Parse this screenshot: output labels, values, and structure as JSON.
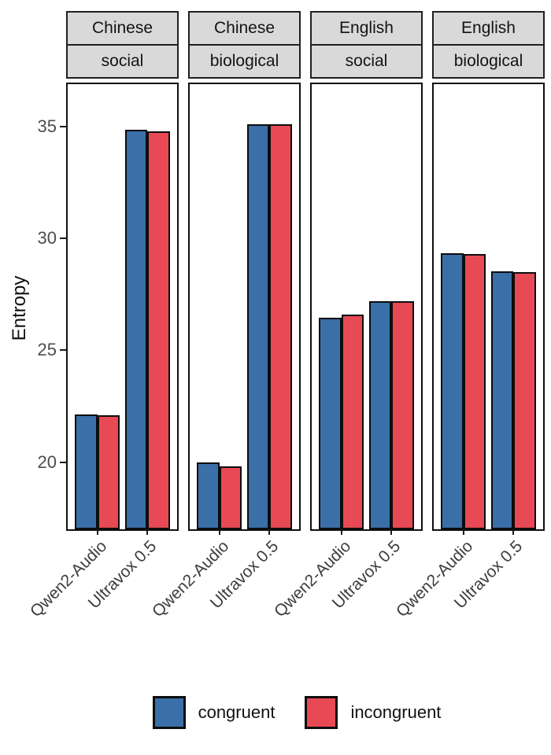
{
  "figure": {
    "background": "#ffffff"
  },
  "chart_data": {
    "type": "bar",
    "title": "",
    "xlabel": "",
    "ylabel": "Entropy",
    "ylim": [
      17.0,
      36.9
    ],
    "yticks": [
      20,
      25,
      30,
      35
    ],
    "categories": [
      "Qwen2-Audio",
      "Ultravox 0.5"
    ],
    "legend_position": "bottom",
    "grid": false,
    "legend": [
      {
        "label": "congruent",
        "color": "#3A6FA8"
      },
      {
        "label": "incongruent",
        "color": "#E84A55"
      }
    ],
    "facets": [
      {
        "strip_top": "Chinese",
        "strip_bottom": "social",
        "series": [
          {
            "name": "congruent",
            "values": [
              22.15,
              34.85
            ]
          },
          {
            "name": "incongruent",
            "values": [
              22.1,
              34.8
            ]
          }
        ]
      },
      {
        "strip_top": "Chinese",
        "strip_bottom": "biological",
        "series": [
          {
            "name": "congruent",
            "values": [
              20.0,
              35.1
            ]
          },
          {
            "name": "incongruent",
            "values": [
              19.8,
              35.1
            ]
          }
        ]
      },
      {
        "strip_top": "English",
        "strip_bottom": "social",
        "series": [
          {
            "name": "congruent",
            "values": [
              26.45,
              27.2
            ]
          },
          {
            "name": "incongruent",
            "values": [
              26.6,
              27.2
            ]
          }
        ]
      },
      {
        "strip_top": "English",
        "strip_bottom": "biological",
        "series": [
          {
            "name": "congruent",
            "values": [
              29.35,
              28.55
            ]
          },
          {
            "name": "incongruent",
            "values": [
              29.3,
              28.5
            ]
          }
        ]
      }
    ],
    "styles": {
      "strip_fill": "#D9D9D9",
      "bar_border": "#0d0d0d",
      "y_text_color": "#4d4d4d",
      "x_text_color": "#3d3d3d"
    }
  }
}
